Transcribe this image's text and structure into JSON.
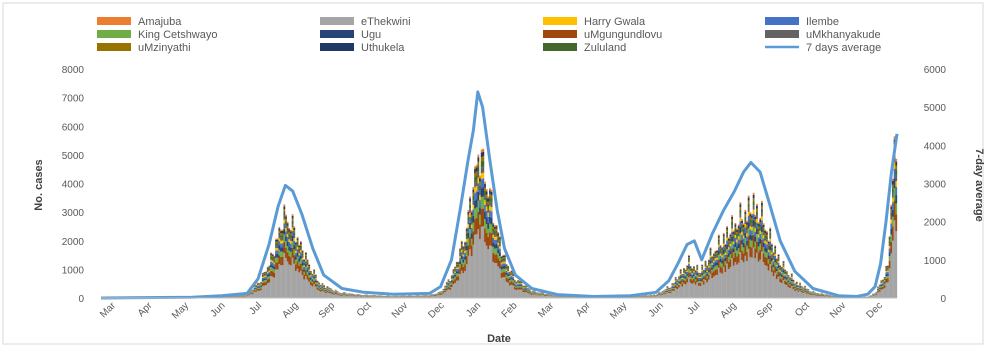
{
  "chart_data": {
    "type": "area",
    "xlabel": "Date",
    "ylabel": "No. cases",
    "ylabel_right": "7-day average",
    "ylim": [
      0,
      8000
    ],
    "ylim_right": [
      0,
      6000
    ],
    "yticks": [
      "0",
      "1000",
      "2000",
      "3000",
      "4000",
      "5000",
      "6000",
      "7000",
      "8000"
    ],
    "yticks_right": [
      "0",
      "1000",
      "2000",
      "3000",
      "4000",
      "5000",
      "6000"
    ],
    "x_range_months": [
      0,
      21.8
    ],
    "months": [
      "Mar",
      "Apr",
      "May",
      "Jun",
      "Jul",
      "Aug",
      "Sep",
      "Oct",
      "Nov",
      "Dec",
      "Jan",
      "Feb",
      "Mar",
      "Apr",
      "May",
      "Jun",
      "Jul",
      "Aug",
      "Sep",
      "Oct",
      "Nov",
      "Dec"
    ],
    "legend_position": "top",
    "legend": [
      {
        "name": "Amajuba",
        "color": "#ed7d31"
      },
      {
        "name": "eThekwini",
        "color": "#a5a5a5"
      },
      {
        "name": "Harry Gwala",
        "color": "#ffc000"
      },
      {
        "name": "Ilembe",
        "color": "#4472c4"
      },
      {
        "name": "King Cetshwayo",
        "color": "#70ad47"
      },
      {
        "name": "Ugu",
        "color": "#264478"
      },
      {
        "name": "uMgungundlovu",
        "color": "#9e480e"
      },
      {
        "name": "uMkhanyakude",
        "color": "#636363"
      },
      {
        "name": "uMzinyathi",
        "color": "#997300"
      },
      {
        "name": "Uthukela",
        "color": "#1f3864"
      },
      {
        "name": "Zululand",
        "color": "#43682b"
      },
      {
        "name": "7 days average",
        "color": "#5b9bd5"
      }
    ],
    "total_daily_cases": {
      "month_index": [
        0,
        2.5,
        3.3,
        4.0,
        4.4,
        4.7,
        4.85,
        5.0,
        5.2,
        5.4,
        5.7,
        6.0,
        6.5,
        7.0,
        8.0,
        9.0,
        9.3,
        9.6,
        9.9,
        10.1,
        10.25,
        10.4,
        10.6,
        10.8,
        11.0,
        11.3,
        11.8,
        12.5,
        13.5,
        14.5,
        15.2,
        15.6,
        15.85,
        16.1,
        16.4,
        16.7,
        17.0,
        17.3,
        17.6,
        17.85,
        18.05,
        18.3,
        18.6,
        19.0,
        19.5,
        20.2,
        20.7,
        21.0,
        21.2,
        21.4,
        21.55,
        21.7,
        21.8
      ],
      "values": [
        0,
        20,
        60,
        150,
        800,
        1800,
        2600,
        3400,
        3200,
        2400,
        1400,
        600,
        250,
        150,
        80,
        120,
        250,
        900,
        2200,
        3700,
        5300,
        6000,
        4600,
        3200,
        1800,
        900,
        300,
        100,
        40,
        60,
        150,
        500,
        1000,
        1500,
        1100,
        1800,
        2400,
        3000,
        3500,
        3900,
        3600,
        2600,
        1500,
        700,
        250,
        60,
        40,
        60,
        200,
        800,
        1300,
        6000,
        5500
      ]
    },
    "seven_day_average": {
      "month_index": [
        0,
        2.5,
        3.3,
        4.0,
        4.3,
        4.6,
        4.85,
        5.05,
        5.25,
        5.5,
        5.8,
        6.1,
        6.6,
        7.2,
        8.0,
        9.0,
        9.3,
        9.6,
        9.85,
        10.05,
        10.2,
        10.32,
        10.45,
        10.65,
        10.85,
        11.05,
        11.35,
        11.8,
        12.5,
        13.5,
        14.5,
        15.2,
        15.55,
        15.8,
        16.05,
        16.25,
        16.45,
        16.75,
        17.05,
        17.35,
        17.6,
        17.8,
        18.05,
        18.3,
        18.6,
        19.0,
        19.5,
        20.2,
        20.7,
        21.0,
        21.2,
        21.35,
        21.5,
        21.65,
        21.8
      ],
      "values": [
        0,
        20,
        60,
        120,
        500,
        1400,
        2400,
        2950,
        2800,
        2200,
        1300,
        600,
        250,
        150,
        100,
        120,
        300,
        1000,
        2400,
        3600,
        4400,
        5400,
        5000,
        3600,
        2300,
        1300,
        600,
        250,
        90,
        40,
        60,
        150,
        450,
        900,
        1400,
        1500,
        1000,
        1700,
        2300,
        2800,
        3300,
        3550,
        3300,
        2500,
        1500,
        700,
        250,
        60,
        40,
        100,
        300,
        900,
        2000,
        3300,
        4300
      ]
    }
  }
}
